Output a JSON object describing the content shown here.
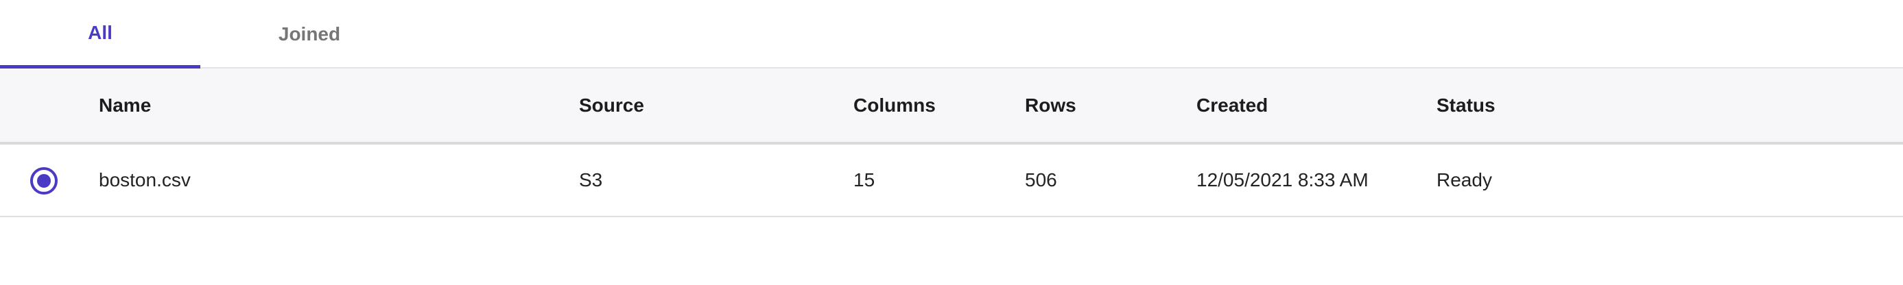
{
  "tabs": {
    "all": "All",
    "joined": "Joined"
  },
  "table": {
    "columns": [
      "Name",
      "Source",
      "Columns",
      "Rows",
      "Created",
      "Status"
    ],
    "rows": [
      {
        "selected": true,
        "name": "boston.csv",
        "source": "S3",
        "columns": "15",
        "rows": "506",
        "created": "12/05/2021 8:33 AM",
        "status": "Ready"
      }
    ]
  },
  "colors": {
    "accent": "#4a3bc4",
    "header_bg": "#f7f7f9",
    "inactive_tab": "#767679"
  }
}
